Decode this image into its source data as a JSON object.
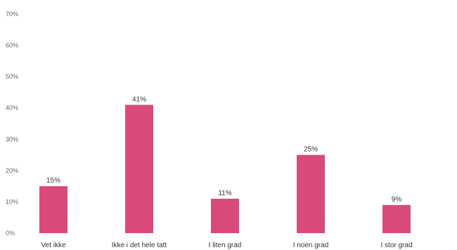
{
  "chart_data": {
    "type": "bar",
    "categories": [
      "Vet ikke",
      "Ikke i det hele tatt",
      "I liten grad",
      "I noen grad",
      "I stor grad"
    ],
    "values": [
      15,
      41,
      11,
      25,
      9
    ],
    "data_labels": [
      "15%",
      "41%",
      "11%",
      "25%",
      "9%"
    ],
    "ylim": [
      0,
      70
    ],
    "yticks": [
      0,
      10,
      20,
      30,
      40,
      50,
      60,
      70
    ],
    "ytick_labels": [
      "0%",
      "10%",
      "20%",
      "30%",
      "40%",
      "50%",
      "60%",
      "70%"
    ],
    "title": "",
    "xlabel": "",
    "ylabel": "",
    "grid": false,
    "bar_color": "#d94a7a"
  }
}
